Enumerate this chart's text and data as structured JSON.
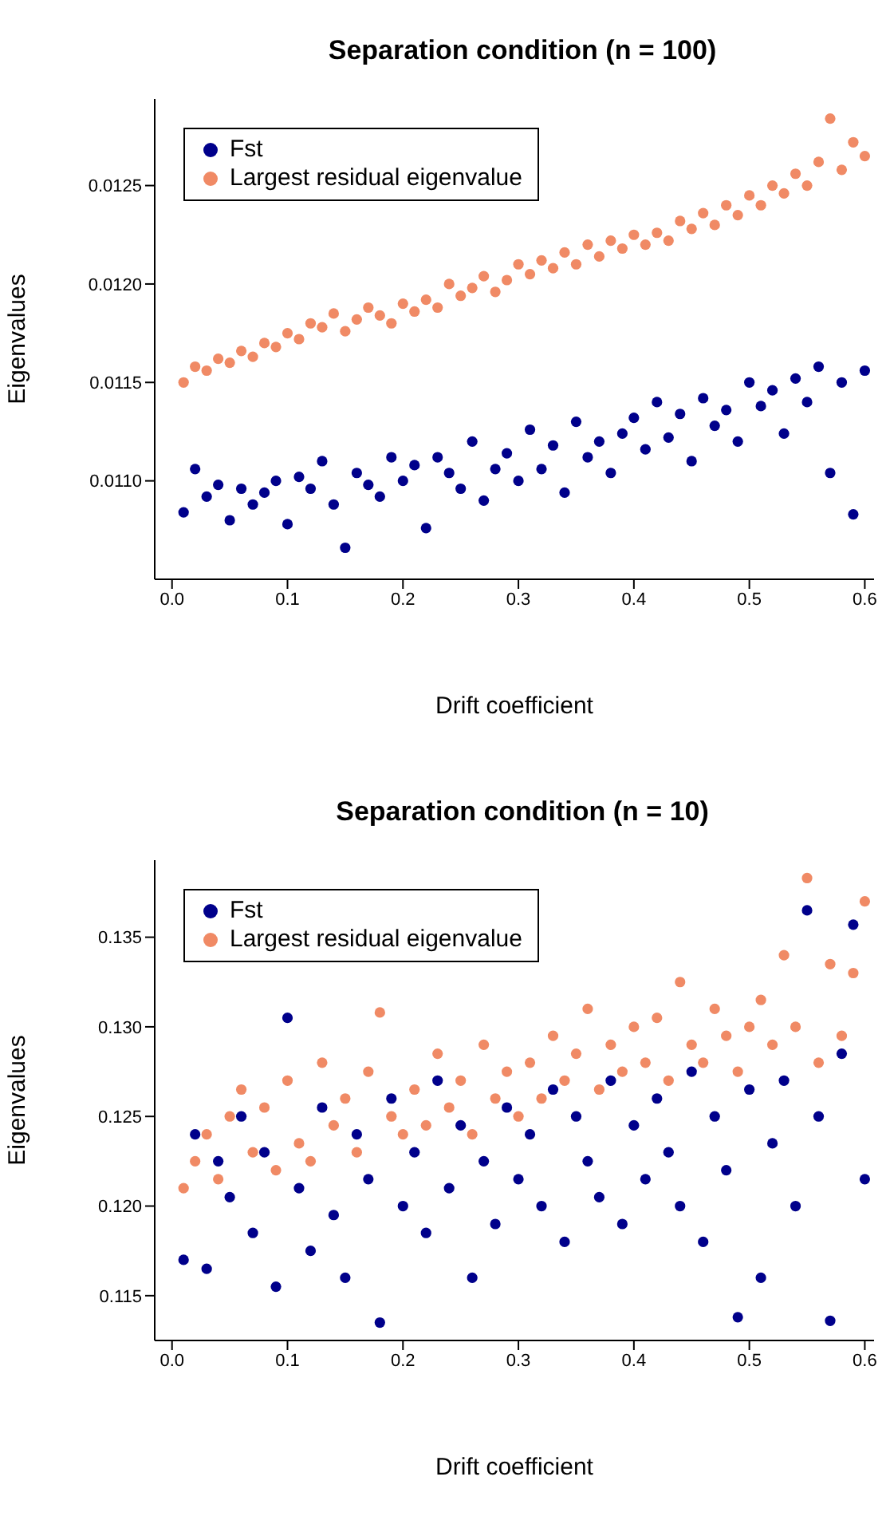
{
  "chart_data": [
    {
      "type": "scatter",
      "title": "Separation condition (n = 100)",
      "xlabel": "Drift coefficient",
      "ylabel": "Eigenvalues",
      "legend": "top left",
      "marker": "circle",
      "grid": false,
      "x": [
        0.01,
        0.02,
        0.03,
        0.04,
        0.05,
        0.06,
        0.07,
        0.08,
        0.09,
        0.1,
        0.11,
        0.12,
        0.13,
        0.14,
        0.15,
        0.16,
        0.17,
        0.18,
        0.19,
        0.2,
        0.21,
        0.22,
        0.23,
        0.24,
        0.25,
        0.26,
        0.27,
        0.28,
        0.29,
        0.3,
        0.31,
        0.32,
        0.33,
        0.34,
        0.35,
        0.36,
        0.37,
        0.38,
        0.39,
        0.4,
        0.41,
        0.42,
        0.43,
        0.44,
        0.45,
        0.46,
        0.47,
        0.48,
        0.49,
        0.5,
        0.51,
        0.52,
        0.53,
        0.54,
        0.55,
        0.56,
        0.57,
        0.58,
        0.59,
        0.6
      ],
      "xlim": [
        -0.015,
        0.608
      ],
      "xticks": [
        {
          "value": 0,
          "label": "0.0"
        },
        0.1,
        0.2,
        0.3,
        0.4,
        0.5,
        0.6
      ],
      "ylim": [
        0.0105,
        0.01294
      ],
      "yticks": [
        {
          "value": 0.011,
          "label": "0.0110"
        },
        0.0115,
        {
          "value": 0.012,
          "label": "0.0120"
        },
        0.0125
      ],
      "series": [
        {
          "name": "Fst",
          "color": "#00008b",
          "values": [
            0.01084,
            0.01106,
            0.01092,
            0.01098,
            0.0108,
            0.01096,
            0.01088,
            0.01094,
            0.011,
            0.01078,
            0.01102,
            0.01096,
            0.0111,
            0.01088,
            0.01066,
            0.01104,
            0.01098,
            0.01092,
            0.01112,
            0.011,
            0.01108,
            0.01076,
            0.01112,
            0.01104,
            0.01096,
            0.0112,
            0.0109,
            0.01106,
            0.01114,
            0.011,
            0.01126,
            0.01106,
            0.01118,
            0.01094,
            0.0113,
            0.01112,
            0.0112,
            0.01104,
            0.01124,
            0.01132,
            0.01116,
            0.0114,
            0.01122,
            0.01134,
            0.0111,
            0.01142,
            0.01128,
            0.01136,
            0.0112,
            0.0115,
            0.01138,
            0.01146,
            0.01124,
            0.01152,
            0.0114,
            0.01158,
            0.01104,
            0.0115,
            0.01083,
            0.01156
          ]
        },
        {
          "name": "Largest residual eigenvalue",
          "color": "#f08a65",
          "values": [
            0.0115,
            0.01158,
            0.01156,
            0.01162,
            0.0116,
            0.01166,
            0.01163,
            0.0117,
            0.01168,
            0.01175,
            0.01172,
            0.0118,
            0.01178,
            0.01185,
            0.01176,
            0.01182,
            0.01188,
            0.01184,
            0.0118,
            0.0119,
            0.01186,
            0.01192,
            0.01188,
            0.012,
            0.01194,
            0.01198,
            0.01204,
            0.01196,
            0.01202,
            0.0121,
            0.01205,
            0.01212,
            0.01208,
            0.01216,
            0.0121,
            0.0122,
            0.01214,
            0.01222,
            0.01218,
            0.01225,
            0.0122,
            0.01226,
            0.01222,
            0.01232,
            0.01228,
            0.01236,
            0.0123,
            0.0124,
            0.01235,
            0.01245,
            0.0124,
            0.0125,
            0.01246,
            0.01256,
            0.0125,
            0.01262,
            0.01284,
            0.01258,
            0.01272,
            0.01265
          ]
        }
      ]
    },
    {
      "type": "scatter",
      "title": "Separation condition (n = 10)",
      "xlabel": "Drift coefficient",
      "ylabel": "Eigenvalues",
      "legend": "top left",
      "marker": "circle",
      "grid": false,
      "x": [
        0.01,
        0.02,
        0.03,
        0.04,
        0.05,
        0.06,
        0.07,
        0.08,
        0.09,
        0.1,
        0.11,
        0.12,
        0.13,
        0.14,
        0.15,
        0.16,
        0.17,
        0.18,
        0.19,
        0.2,
        0.21,
        0.22,
        0.23,
        0.24,
        0.25,
        0.26,
        0.27,
        0.28,
        0.29,
        0.3,
        0.31,
        0.32,
        0.33,
        0.34,
        0.35,
        0.36,
        0.37,
        0.38,
        0.39,
        0.4,
        0.41,
        0.42,
        0.43,
        0.44,
        0.45,
        0.46,
        0.47,
        0.48,
        0.49,
        0.5,
        0.51,
        0.52,
        0.53,
        0.54,
        0.55,
        0.56,
        0.57,
        0.58,
        0.59,
        0.6
      ],
      "xlim": [
        -0.015,
        0.608
      ],
      "xticks": [
        {
          "value": 0,
          "label": "0.0"
        },
        0.1,
        0.2,
        0.3,
        0.4,
        0.5,
        0.6
      ],
      "ylim": [
        0.1125,
        0.1393
      ],
      "yticks": [
        0.115,
        {
          "value": 0.12,
          "label": "0.120"
        },
        0.125,
        {
          "value": 0.13,
          "label": "0.130"
        },
        0.135
      ],
      "series": [
        {
          "name": "Fst",
          "color": "#00008b",
          "values": [
            0.117,
            0.124,
            0.1165,
            0.1225,
            0.1205,
            0.125,
            0.1185,
            0.123,
            0.1155,
            0.1305,
            0.121,
            0.1175,
            0.1255,
            0.1195,
            0.116,
            0.124,
            0.1215,
            0.1135,
            0.126,
            0.12,
            0.123,
            0.1185,
            0.127,
            0.121,
            0.1245,
            0.116,
            0.1225,
            0.119,
            0.1255,
            0.1215,
            0.124,
            0.12,
            0.1265,
            0.118,
            0.125,
            0.1225,
            0.1205,
            0.127,
            0.119,
            0.1245,
            0.1215,
            0.126,
            0.123,
            0.12,
            0.1275,
            0.118,
            0.125,
            0.122,
            0.1138,
            0.1265,
            0.116,
            0.1235,
            0.127,
            0.12,
            0.1365,
            0.125,
            0.1136,
            0.1285,
            0.1357,
            0.1215
          ]
        },
        {
          "name": "Largest residual eigenvalue",
          "color": "#f08a65",
          "values": [
            0.121,
            0.1225,
            0.124,
            0.1215,
            0.125,
            0.1265,
            0.123,
            0.1255,
            0.122,
            0.127,
            0.1235,
            0.1225,
            0.128,
            0.1245,
            0.126,
            0.123,
            0.1275,
            0.1308,
            0.125,
            0.124,
            0.1265,
            0.1245,
            0.1285,
            0.1255,
            0.127,
            0.124,
            0.129,
            0.126,
            0.1275,
            0.125,
            0.128,
            0.126,
            0.1295,
            0.127,
            0.1285,
            0.131,
            0.1265,
            0.129,
            0.1275,
            0.13,
            0.128,
            0.1305,
            0.127,
            0.1325,
            0.129,
            0.128,
            0.131,
            0.1295,
            0.1275,
            0.13,
            0.1315,
            0.129,
            0.134,
            0.13,
            0.1383,
            0.128,
            0.1335,
            0.1295,
            0.133,
            0.137
          ]
        }
      ]
    }
  ]
}
